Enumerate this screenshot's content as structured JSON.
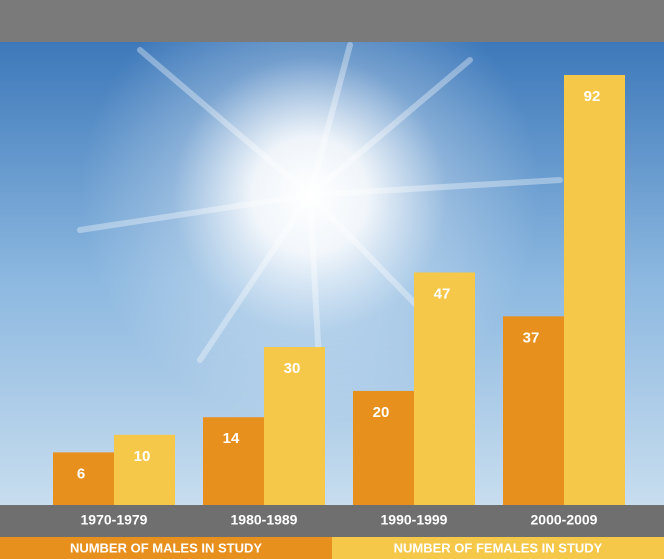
{
  "chart_data": {
    "type": "bar",
    "categories": [
      "1970-1979",
      "1980-1989",
      "1990-1999",
      "2000-2009"
    ],
    "series": [
      {
        "name": "NUMBER OF MALES IN STUDY",
        "color": "#e8901e",
        "values": [
          6,
          14,
          20,
          37
        ]
      },
      {
        "name": "NUMBER OF FEMALES IN STUDY",
        "color": "#f5c84a",
        "values": [
          10,
          30,
          47,
          92
        ]
      }
    ],
    "ylim": [
      -6,
      92
    ],
    "grid": false
  }
}
